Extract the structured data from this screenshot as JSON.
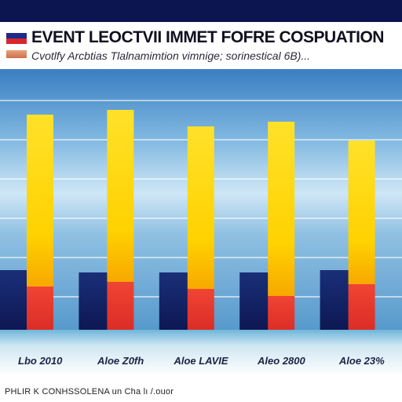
{
  "header": {
    "title": "EVENT LEOCTVII IMMET FOFRE COSPUATION",
    "subtitle": "Cvotlfy Arcbtias Tlalnamimtion vimnige; sorinestical 6B)..."
  },
  "footer": {
    "text": "PHLIR K CONHSSOLENA un Cha lı /.ouor"
  },
  "colors": {
    "top_bar": "#0c1550",
    "navy_bar": "#0f1a5e",
    "gold": "#ffd400",
    "gold_light": "#ffe94a",
    "red": "#e33328",
    "sky_top": "#3f86c8",
    "sky_bottom": "#c9e6f5"
  },
  "chart_data": {
    "type": "bar",
    "categories": [
      "Lbo 2010",
      "Aloe Z0fh",
      "Aloe LAVIE",
      "Aleo 2800",
      "Aloe 23%"
    ],
    "series": [
      {
        "values": [
          28,
          27,
          27,
          27,
          28
        ]
      },
      {
        "values": [
          94,
          96,
          89,
          91,
          83
        ]
      },
      {
        "values": [
          21,
          23,
          20,
          17,
          22
        ]
      }
    ],
    "ylim": [
      0,
      100
    ],
    "grid": true,
    "legend": "none"
  }
}
